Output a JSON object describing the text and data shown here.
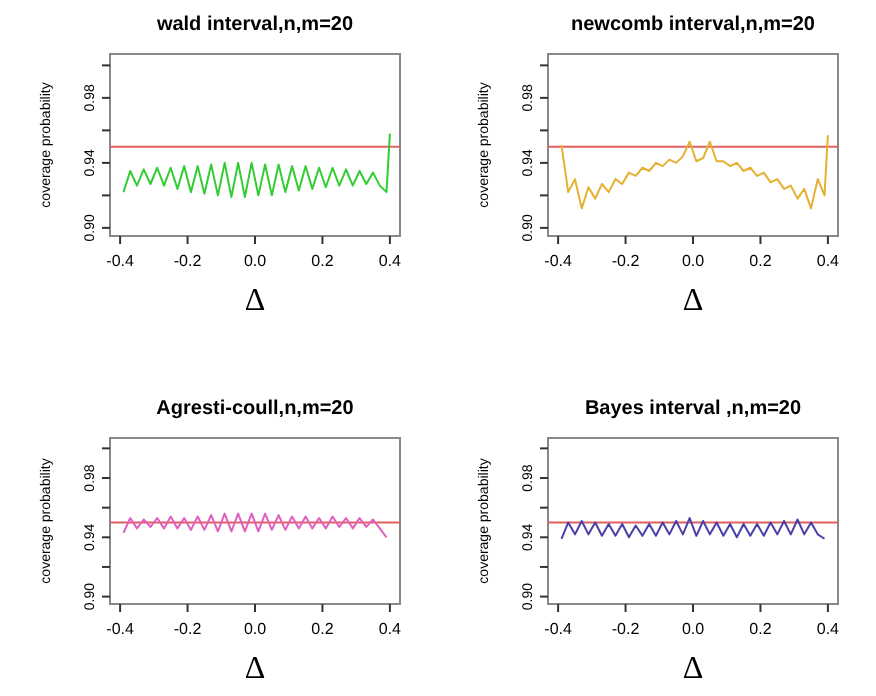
{
  "chart_data": [
    {
      "type": "line",
      "title": "wald interval,n,m=20",
      "xlabel": "Δ",
      "ylabel": "coverage probability",
      "xlim": [
        -0.43,
        0.43
      ],
      "ylim": [
        0.895,
        1.007
      ],
      "xticks": [
        {
          "value": -0.4,
          "label": "-0.4"
        },
        {
          "value": -0.2,
          "label": "-0.2"
        },
        {
          "value": 0,
          "label": "0.0"
        },
        {
          "value": 0.2,
          "label": "0.2"
        },
        {
          "value": 0.4,
          "label": "0.4"
        }
      ],
      "yticks": [
        {
          "value": 0.9,
          "label": "0.90"
        },
        {
          "value": 0.92,
          "label": null
        },
        {
          "value": 0.94,
          "label": "0.94"
        },
        {
          "value": 0.96,
          "label": null
        },
        {
          "value": 0.98,
          "label": "0.98"
        },
        {
          "value": 1.0,
          "label": null
        }
      ],
      "grid": false,
      "line_style": "solid",
      "x": [
        -0.39,
        -0.37,
        -0.35,
        -0.33,
        -0.31,
        -0.29,
        -0.27,
        -0.25,
        -0.23,
        -0.21,
        -0.19,
        -0.17,
        -0.15,
        -0.13,
        -0.11,
        -0.09,
        -0.07,
        -0.05,
        -0.03,
        -0.01,
        0.01,
        0.03,
        0.05,
        0.07,
        0.09,
        0.11,
        0.13,
        0.15,
        0.17,
        0.19,
        0.21,
        0.23,
        0.25,
        0.27,
        0.29,
        0.31,
        0.33,
        0.35,
        0.37,
        0.39,
        0.4
      ],
      "series": [
        {
          "color": "#33cc33",
          "values": [
            0.922,
            0.935,
            0.926,
            0.936,
            0.927,
            0.937,
            0.926,
            0.937,
            0.924,
            0.938,
            0.922,
            0.938,
            0.921,
            0.939,
            0.92,
            0.94,
            0.919,
            0.94,
            0.919,
            0.94,
            0.92,
            0.939,
            0.92,
            0.939,
            0.922,
            0.938,
            0.923,
            0.938,
            0.924,
            0.937,
            0.925,
            0.937,
            0.926,
            0.936,
            0.926,
            0.935,
            0.927,
            0.934,
            0.926,
            0.922,
            0.958
          ]
        }
      ],
      "ref_lines": [
        {
          "axis": "y",
          "value": 0.95,
          "color": "#e06060"
        }
      ]
    },
    {
      "type": "line",
      "title": "newcomb interval,n,m=20",
      "xlabel": "Δ",
      "ylabel": "coverage probability",
      "xlim": [
        -0.43,
        0.43
      ],
      "ylim": [
        0.895,
        1.007
      ],
      "xticks": [
        {
          "value": -0.4,
          "label": "-0.4"
        },
        {
          "value": -0.2,
          "label": "-0.2"
        },
        {
          "value": 0,
          "label": "0.0"
        },
        {
          "value": 0.2,
          "label": "0.2"
        },
        {
          "value": 0.4,
          "label": "0.4"
        }
      ],
      "yticks": [
        {
          "value": 0.9,
          "label": "0.90"
        },
        {
          "value": 0.92,
          "label": null
        },
        {
          "value": 0.94,
          "label": "0.94"
        },
        {
          "value": 0.96,
          "label": null
        },
        {
          "value": 0.98,
          "label": "0.98"
        },
        {
          "value": 1.0,
          "label": null
        }
      ],
      "grid": false,
      "line_style": "solid",
      "x": [
        -0.39,
        -0.37,
        -0.35,
        -0.33,
        -0.31,
        -0.29,
        -0.27,
        -0.25,
        -0.23,
        -0.21,
        -0.19,
        -0.17,
        -0.15,
        -0.13,
        -0.11,
        -0.09,
        -0.07,
        -0.05,
        -0.03,
        -0.01,
        0.01,
        0.03,
        0.05,
        0.07,
        0.09,
        0.11,
        0.13,
        0.15,
        0.17,
        0.19,
        0.21,
        0.23,
        0.25,
        0.27,
        0.29,
        0.31,
        0.33,
        0.35,
        0.37,
        0.39,
        0.4
      ],
      "series": [
        {
          "color": "#e6b030",
          "values": [
            0.951,
            0.922,
            0.93,
            0.912,
            0.925,
            0.918,
            0.927,
            0.922,
            0.93,
            0.927,
            0.934,
            0.932,
            0.937,
            0.935,
            0.94,
            0.938,
            0.942,
            0.94,
            0.944,
            0.953,
            0.941,
            0.943,
            0.953,
            0.941,
            0.941,
            0.938,
            0.94,
            0.935,
            0.937,
            0.932,
            0.934,
            0.928,
            0.93,
            0.924,
            0.926,
            0.918,
            0.924,
            0.912,
            0.93,
            0.92,
            0.957
          ]
        }
      ],
      "ref_lines": [
        {
          "axis": "y",
          "value": 0.95,
          "color": "#e06060"
        }
      ]
    },
    {
      "type": "line",
      "title": "Agresti-coull,n,m=20",
      "xlabel": "Δ",
      "ylabel": "coverage probability",
      "xlim": [
        -0.43,
        0.43
      ],
      "ylim": [
        0.895,
        1.007
      ],
      "xticks": [
        {
          "value": -0.4,
          "label": "-0.4"
        },
        {
          "value": -0.2,
          "label": "-0.2"
        },
        {
          "value": 0,
          "label": "0.0"
        },
        {
          "value": 0.2,
          "label": "0.2"
        },
        {
          "value": 0.4,
          "label": "0.4"
        }
      ],
      "yticks": [
        {
          "value": 0.9,
          "label": "0.90"
        },
        {
          "value": 0.92,
          "label": null
        },
        {
          "value": 0.94,
          "label": "0.94"
        },
        {
          "value": 0.96,
          "label": null
        },
        {
          "value": 0.98,
          "label": "0.98"
        },
        {
          "value": 1.0,
          "label": null
        }
      ],
      "grid": false,
      "line_style": "solid",
      "x": [
        -0.39,
        -0.37,
        -0.35,
        -0.33,
        -0.31,
        -0.29,
        -0.27,
        -0.25,
        -0.23,
        -0.21,
        -0.19,
        -0.17,
        -0.15,
        -0.13,
        -0.11,
        -0.09,
        -0.07,
        -0.05,
        -0.03,
        -0.01,
        0.01,
        0.03,
        0.05,
        0.07,
        0.09,
        0.11,
        0.13,
        0.15,
        0.17,
        0.19,
        0.21,
        0.23,
        0.25,
        0.27,
        0.29,
        0.31,
        0.33,
        0.35,
        0.37,
        0.39
      ],
      "series": [
        {
          "color": "#e060c0",
          "values": [
            0.943,
            0.953,
            0.946,
            0.952,
            0.947,
            0.953,
            0.946,
            0.954,
            0.946,
            0.953,
            0.945,
            0.954,
            0.945,
            0.955,
            0.944,
            0.956,
            0.944,
            0.956,
            0.944,
            0.956,
            0.944,
            0.956,
            0.945,
            0.955,
            0.945,
            0.954,
            0.946,
            0.954,
            0.946,
            0.953,
            0.946,
            0.954,
            0.947,
            0.953,
            0.946,
            0.953,
            0.947,
            0.952,
            0.946,
            0.94
          ]
        }
      ],
      "ref_lines": [
        {
          "axis": "y",
          "value": 0.95,
          "color": "#e06060"
        }
      ]
    },
    {
      "type": "line",
      "title": "Bayes interval ,n,m=20",
      "xlabel": "Δ",
      "ylabel": "coverage probability",
      "xlim": [
        -0.43,
        0.43
      ],
      "ylim": [
        0.895,
        1.007
      ],
      "xticks": [
        {
          "value": -0.4,
          "label": "-0.4"
        },
        {
          "value": -0.2,
          "label": "-0.2"
        },
        {
          "value": 0,
          "label": "0.0"
        },
        {
          "value": 0.2,
          "label": "0.2"
        },
        {
          "value": 0.4,
          "label": "0.4"
        }
      ],
      "yticks": [
        {
          "value": 0.9,
          "label": "0.90"
        },
        {
          "value": 0.92,
          "label": null
        },
        {
          "value": 0.94,
          "label": "0.94"
        },
        {
          "value": 0.96,
          "label": null
        },
        {
          "value": 0.98,
          "label": "0.98"
        },
        {
          "value": 1.0,
          "label": null
        }
      ],
      "grid": false,
      "line_style": "solid",
      "x": [
        -0.39,
        -0.37,
        -0.35,
        -0.33,
        -0.31,
        -0.29,
        -0.27,
        -0.25,
        -0.23,
        -0.21,
        -0.19,
        -0.17,
        -0.15,
        -0.13,
        -0.11,
        -0.09,
        -0.07,
        -0.05,
        -0.03,
        -0.01,
        0.01,
        0.03,
        0.05,
        0.07,
        0.09,
        0.11,
        0.13,
        0.15,
        0.17,
        0.19,
        0.21,
        0.23,
        0.25,
        0.27,
        0.29,
        0.31,
        0.33,
        0.35,
        0.37,
        0.39
      ],
      "series": [
        {
          "color": "#4a40a8",
          "values": [
            0.939,
            0.95,
            0.942,
            0.951,
            0.942,
            0.95,
            0.941,
            0.949,
            0.941,
            0.949,
            0.94,
            0.948,
            0.941,
            0.949,
            0.941,
            0.95,
            0.942,
            0.951,
            0.942,
            0.953,
            0.941,
            0.951,
            0.942,
            0.95,
            0.941,
            0.949,
            0.94,
            0.949,
            0.941,
            0.949,
            0.941,
            0.95,
            0.942,
            0.951,
            0.942,
            0.952,
            0.942,
            0.95,
            0.942,
            0.939
          ]
        }
      ],
      "ref_lines": [
        {
          "axis": "y",
          "value": 0.95,
          "color": "#e06060"
        }
      ]
    }
  ]
}
